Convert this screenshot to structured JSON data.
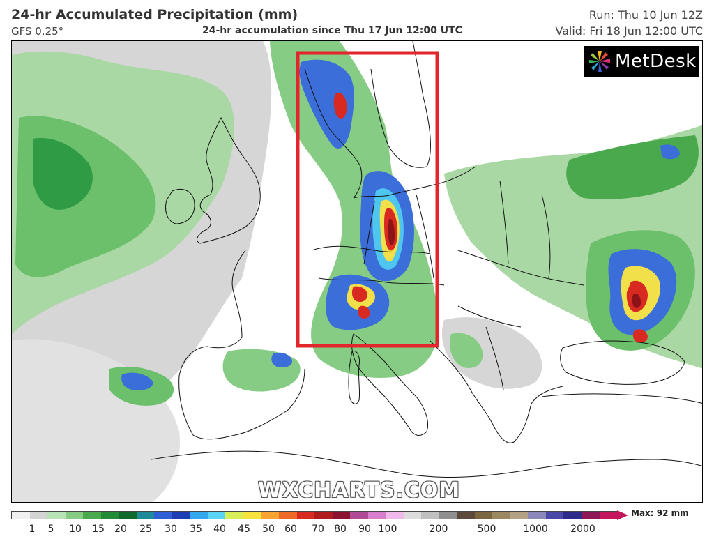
{
  "header": {
    "title": "24-hr Accumulated Precipitation (mm)",
    "model": "GFS 0.25°",
    "subtitle": "24-hr accumulation since Thu 17 Jun 12:00 UTC",
    "run": "Run: Thu 10 Jun 12Z",
    "valid": "Valid: Fri 18 Jun 12:00 UTC"
  },
  "logo": {
    "text": "MetDesk"
  },
  "watermark": "WXCHARTS.COM",
  "highlight": {
    "color": "#e3262b"
  },
  "legend": {
    "ticks": [
      "1",
      "5",
      "10",
      "15",
      "20",
      "25",
      "30",
      "35",
      "40",
      "45",
      "50",
      "60",
      "70",
      "80",
      "90",
      "100",
      "200",
      "500",
      "1000",
      "2000"
    ],
    "max_label": "Max: 92 mm",
    "colors": [
      "#f0f0f0",
      "#d4d4d4",
      "#b8e3b4",
      "#86cc84",
      "#4aa84d",
      "#238b37",
      "#0f6a2b",
      "#1f8a9a",
      "#2f5fd6",
      "#1e3fb3",
      "#33a8ee",
      "#59d4f7",
      "#d9ef58",
      "#f7e23e",
      "#f7a431",
      "#ef6a26",
      "#d82a22",
      "#b01c1e",
      "#8b1230",
      "#b04a98",
      "#d77fcd",
      "#efb9ea",
      "#dcdcdc",
      "#c0c0c0",
      "#8f8f8f",
      "#5e4a3c",
      "#7a6640",
      "#9c8860",
      "#b3a384",
      "#8b89b9",
      "#4a47a6",
      "#2d2a8c",
      "#8d1656",
      "#c2185b"
    ]
  },
  "precip_colors": {
    "light": "#e6e6e6",
    "grey": "#c9c9c9",
    "pale_green": "#b5dfb1",
    "green": "#6dc06c",
    "dark_green": "#2d9a43",
    "blue": "#3b6ed8",
    "cyan": "#4fc6ef",
    "yellow": "#f2e04a",
    "orange": "#f29a32",
    "red": "#d92a22",
    "dark_red": "#8c1418"
  }
}
